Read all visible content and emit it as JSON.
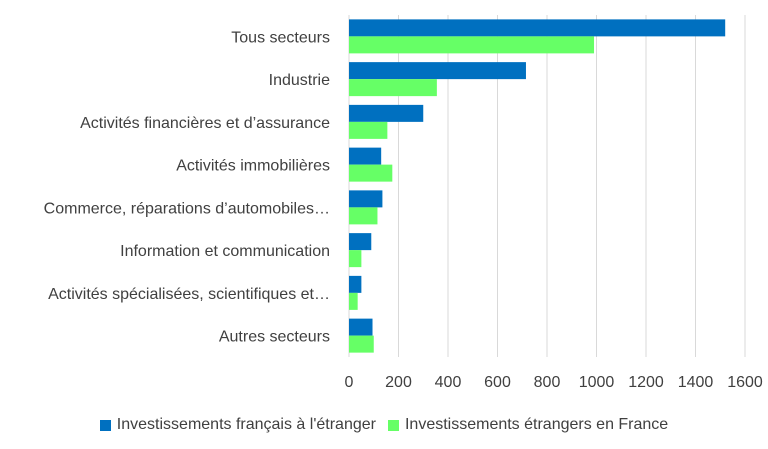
{
  "chart_data": {
    "type": "bar",
    "orientation": "horizontal",
    "categories": [
      "Tous secteurs",
      "Industrie",
      "Activités financières et d’assurance",
      "Activités immobilières",
      "Commerce, réparations d’automobiles…",
      "Information et communication",
      "Activités spécialisées, scientifiques et…",
      "Autres secteurs"
    ],
    "series": [
      {
        "name": "Investissements français à l'étranger",
        "color": "#0070C0",
        "values": [
          1520,
          715,
          300,
          130,
          135,
          90,
          50,
          95
        ]
      },
      {
        "name": "Investissements étrangers en France",
        "color": "#66FF66",
        "values": [
          990,
          355,
          155,
          175,
          115,
          50,
          35,
          100
        ]
      }
    ],
    "xlim": [
      0,
      1600
    ],
    "xticks": [
      "0",
      "200",
      "400",
      "600",
      "800",
      "1000",
      "1200",
      "1400",
      "1600"
    ],
    "grid": true,
    "legend_position": "bottom"
  }
}
